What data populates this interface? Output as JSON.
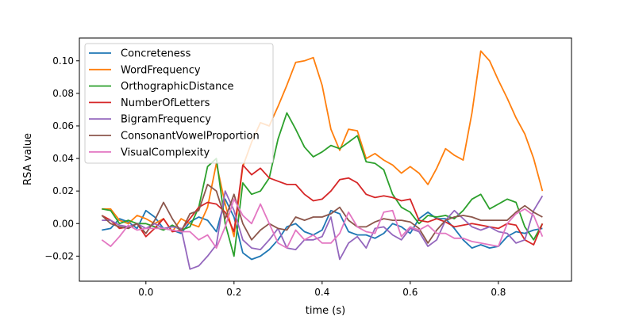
{
  "chart_data": {
    "type": "line",
    "xlabel": "time (s)",
    "ylabel": "RSA value",
    "xlim": [
      -0.151,
      0.966
    ],
    "ylim": [
      -0.0354,
      0.114
    ],
    "xticks": [
      0.0,
      0.2,
      0.4,
      0.6,
      0.8
    ],
    "xtick_labels": [
      "0.0",
      "0.2",
      "0.4",
      "0.6",
      "0.8"
    ],
    "yticks": [
      -0.02,
      0.0,
      0.02,
      0.04,
      0.06,
      0.08,
      0.1
    ],
    "ytick_labels": [
      "−0.02",
      "0.00",
      "0.02",
      "0.04",
      "0.06",
      "0.08",
      "0.10"
    ],
    "grid": false,
    "legend_position": "top-left",
    "x": [
      -0.1,
      -0.08,
      -0.06,
      -0.04,
      -0.02,
      0.0,
      0.02,
      0.04,
      0.06,
      0.08,
      0.1,
      0.12,
      0.14,
      0.16,
      0.18,
      0.2,
      0.22,
      0.24,
      0.26,
      0.28,
      0.3,
      0.32,
      0.34,
      0.36,
      0.38,
      0.4,
      0.42,
      0.44,
      0.46,
      0.48,
      0.5,
      0.52,
      0.54,
      0.56,
      0.58,
      0.6,
      0.62,
      0.64,
      0.66,
      0.68,
      0.7,
      0.72,
      0.74,
      0.76,
      0.78,
      0.8,
      0.82,
      0.84,
      0.86,
      0.88,
      0.9
    ],
    "series": [
      {
        "name": "Concreteness",
        "color": "#1f77b4",
        "values": [
          -0.004,
          -0.003,
          0.003,
          0.001,
          -0.003,
          0.008,
          0.004,
          -0.003,
          -0.004,
          -0.006,
          0.001,
          0.004,
          0.002,
          -0.005,
          0.015,
          0.004,
          -0.018,
          -0.022,
          -0.02,
          -0.016,
          -0.01,
          -0.002,
          0.0,
          -0.005,
          -0.007,
          -0.004,
          0.008,
          0.006,
          -0.005,
          -0.007,
          -0.007,
          -0.009,
          -0.006,
          0.0,
          -0.002,
          -0.006,
          0.003,
          0.007,
          0.003,
          0.003,
          -0.003,
          -0.01,
          -0.015,
          -0.013,
          -0.015,
          -0.014,
          -0.008,
          -0.005,
          -0.006,
          -0.004,
          -0.003
        ]
      },
      {
        "name": "WordFrequency",
        "color": "#ff7f0e",
        "values": [
          0.009,
          0.009,
          0.002,
          0.0,
          0.005,
          0.003,
          0.0,
          0.003,
          -0.005,
          0.003,
          0.0,
          -0.002,
          0.01,
          0.037,
          0.012,
          -0.008,
          0.035,
          0.05,
          0.062,
          0.06,
          0.072,
          0.085,
          0.099,
          0.1,
          0.102,
          0.085,
          0.058,
          0.045,
          0.058,
          0.057,
          0.04,
          0.043,
          0.039,
          0.036,
          0.031,
          0.035,
          0.031,
          0.024,
          0.034,
          0.046,
          0.042,
          0.039,
          0.068,
          0.106,
          0.1,
          0.088,
          0.077,
          0.065,
          0.055,
          0.04,
          0.02
        ]
      },
      {
        "name": "OrthographicDistance",
        "color": "#2ca02c",
        "values": [
          0.009,
          0.008,
          0.0,
          0.002,
          0.0,
          0.0,
          -0.002,
          -0.004,
          -0.001,
          -0.004,
          -0.002,
          0.01,
          0.035,
          0.04,
          0.0,
          -0.02,
          0.025,
          0.018,
          0.02,
          0.028,
          0.052,
          0.068,
          0.058,
          0.047,
          0.041,
          0.044,
          0.048,
          0.046,
          0.05,
          0.054,
          0.038,
          0.037,
          0.033,
          0.018,
          0.01,
          0.007,
          0.0,
          0.005,
          0.004,
          0.005,
          0.003,
          0.008,
          0.015,
          0.018,
          0.009,
          0.012,
          0.015,
          0.013,
          -0.002,
          -0.01,
          0.0
        ]
      },
      {
        "name": "NumberOfLetters",
        "color": "#d62728",
        "values": [
          0.005,
          0.002,
          -0.003,
          -0.002,
          0.0,
          -0.008,
          -0.003,
          0.003,
          -0.005,
          -0.004,
          0.003,
          0.01,
          0.013,
          0.012,
          0.007,
          -0.005,
          0.036,
          0.03,
          0.034,
          0.028,
          0.026,
          0.024,
          0.024,
          0.018,
          0.014,
          0.015,
          0.02,
          0.027,
          0.028,
          0.025,
          0.018,
          0.016,
          0.017,
          0.016,
          0.014,
          0.015,
          0.002,
          0.001,
          0.003,
          0.001,
          -0.002,
          -0.001,
          0.0,
          -0.001,
          -0.002,
          -0.003,
          0.0,
          -0.001,
          -0.01,
          -0.013,
          0.0
        ]
      },
      {
        "name": "BigramFrequency",
        "color": "#9467bd",
        "values": [
          0.002,
          0.002,
          -0.001,
          -0.002,
          0.0,
          -0.003,
          0.0,
          -0.003,
          -0.002,
          -0.003,
          -0.028,
          -0.026,
          -0.02,
          -0.013,
          0.02,
          0.008,
          -0.01,
          -0.015,
          -0.016,
          -0.01,
          -0.003,
          -0.015,
          -0.016,
          -0.01,
          -0.01,
          -0.008,
          0.004,
          -0.022,
          -0.012,
          -0.008,
          -0.015,
          -0.003,
          -0.002,
          -0.007,
          -0.01,
          -0.003,
          -0.005,
          -0.014,
          -0.01,
          0.002,
          0.008,
          0.003,
          -0.002,
          -0.004,
          -0.002,
          -0.005,
          -0.006,
          -0.012,
          -0.01,
          0.008,
          0.017
        ]
      },
      {
        "name": "ConsonantVowelProportion",
        "color": "#8c564b",
        "values": [
          0.005,
          0.0,
          -0.002,
          -0.003,
          0.0,
          -0.006,
          0.002,
          0.013,
          0.003,
          -0.005,
          0.006,
          0.008,
          0.024,
          0.02,
          0.003,
          0.018,
          0.0,
          -0.01,
          -0.004,
          0.0,
          -0.003,
          -0.004,
          0.004,
          0.002,
          0.004,
          0.004,
          0.006,
          0.01,
          0.002,
          -0.002,
          -0.002,
          0.001,
          0.003,
          0.002,
          0.002,
          0.001,
          -0.003,
          -0.012,
          -0.004,
          0.002,
          0.004,
          0.005,
          0.004,
          0.002,
          0.002,
          0.002,
          0.002,
          0.007,
          0.011,
          0.007,
          0.004
        ]
      },
      {
        "name": "VisualComplexity",
        "color": "#e377c2",
        "values": [
          -0.01,
          -0.014,
          -0.008,
          -0.001,
          -0.004,
          -0.003,
          -0.003,
          -0.003,
          -0.004,
          -0.005,
          -0.005,
          -0.01,
          -0.007,
          -0.015,
          -0.002,
          0.015,
          0.005,
          0.0,
          0.012,
          0.0,
          -0.012,
          -0.015,
          -0.004,
          -0.01,
          -0.007,
          -0.012,
          -0.012,
          -0.006,
          0.007,
          -0.002,
          -0.005,
          -0.006,
          0.007,
          0.008,
          -0.008,
          -0.002,
          -0.004,
          -0.001,
          -0.006,
          -0.006,
          -0.009,
          -0.009,
          -0.011,
          -0.012,
          -0.013,
          -0.014,
          0.0,
          0.006,
          0.009,
          0.005,
          -0.008
        ]
      }
    ]
  }
}
